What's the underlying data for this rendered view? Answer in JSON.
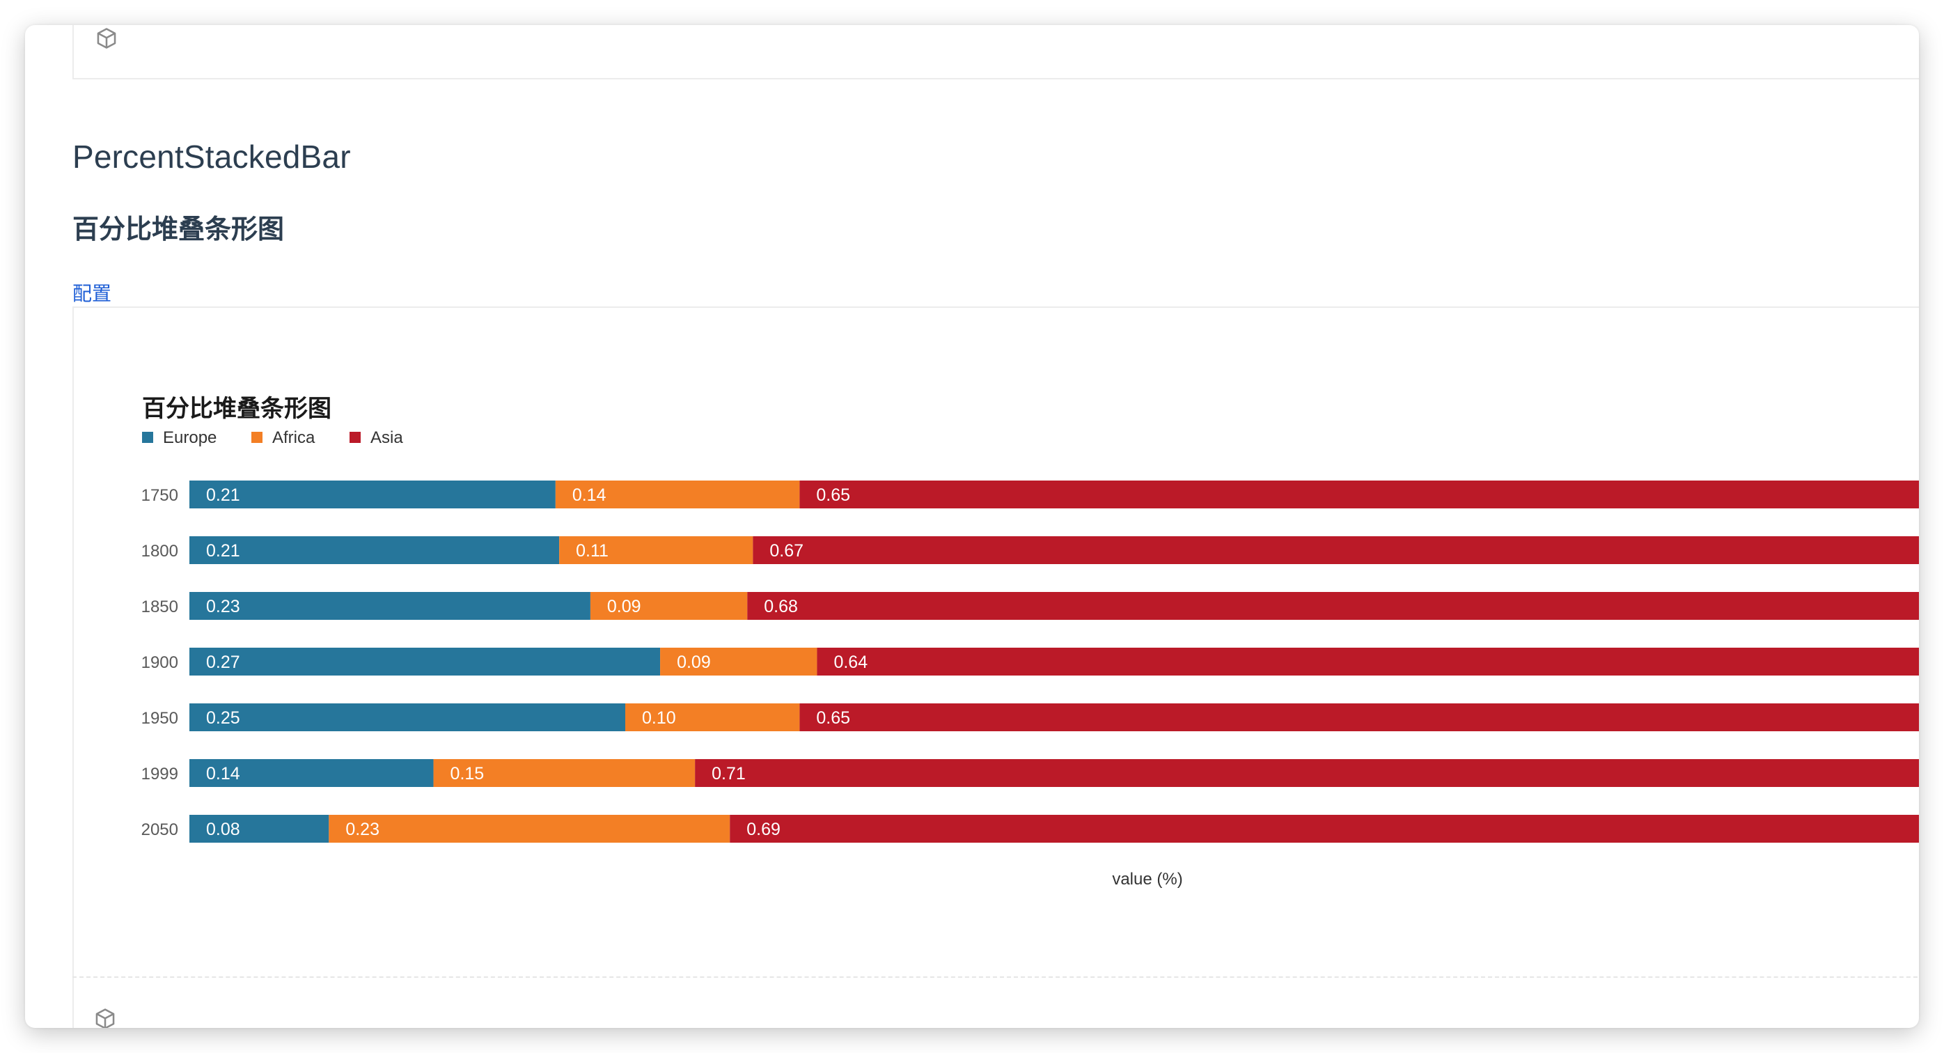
{
  "page": {
    "title": "PercentStackedBar",
    "subtitle": "百分比堆叠条形图",
    "config_link": "配置"
  },
  "icons": {
    "top": "cube-icon",
    "bottom": "cube-icon"
  },
  "chart_data": {
    "type": "bar",
    "orientation": "horizontal",
    "stacked": "percent",
    "title": "百分比堆叠条形图",
    "xlabel": "value (%)",
    "ylabel": "",
    "xlim": [
      0,
      1
    ],
    "legend_position": "top-left",
    "grid": false,
    "categories": [
      "1750",
      "1800",
      "1850",
      "1900",
      "1950",
      "1999",
      "2050"
    ],
    "series": [
      {
        "name": "Europe",
        "color": "#26769b",
        "values": [
          0.21,
          0.21,
          0.23,
          0.27,
          0.25,
          0.14,
          0.08
        ],
        "labels": [
          "0.21",
          "0.21",
          "0.23",
          "0.27",
          "0.25",
          "0.14",
          "0.08"
        ]
      },
      {
        "name": "Africa",
        "color": "#f37f25",
        "values": [
          0.14,
          0.11,
          0.09,
          0.09,
          0.1,
          0.15,
          0.23
        ],
        "labels": [
          "0.14",
          "0.11",
          "0.09",
          "0.09",
          "0.10",
          "0.15",
          "0.23"
        ]
      },
      {
        "name": "Asia",
        "color": "#bb1a28",
        "values": [
          0.65,
          0.67,
          0.68,
          0.64,
          0.65,
          0.71,
          0.69
        ],
        "labels": [
          "0.65",
          "0.67",
          "0.68",
          "0.64",
          "0.65",
          "0.71",
          "0.69"
        ]
      }
    ]
  }
}
